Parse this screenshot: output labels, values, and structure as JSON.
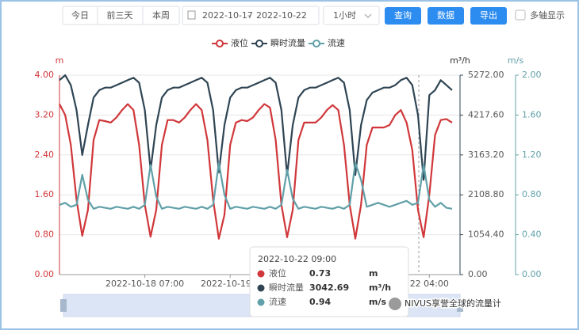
{
  "toolbar": {
    "buttons": [
      "今日",
      "前三天",
      "本周"
    ],
    "date_start": "2022-10-17",
    "date_sep": "-",
    "date_end": "2022-10-22",
    "interval": "1小时",
    "actions": [
      "查询",
      "数据",
      "导出"
    ],
    "checkbox": "多轴显示"
  },
  "chart_data": {
    "type": "line",
    "categories": [
      null,
      null,
      null,
      null,
      null,
      null,
      null,
      null,
      null,
      null,
      null,
      null,
      null,
      null,
      null,
      "2022-10-18 07:00",
      null,
      null,
      null,
      null,
      null,
      null,
      null,
      null,
      null,
      null,
      null,
      null,
      null,
      null,
      "2022-10-19 1",
      null,
      null,
      null,
      null,
      null,
      null,
      null,
      null,
      null,
      null,
      null,
      null,
      null,
      null,
      null,
      null,
      null,
      null,
      null,
      null,
      null,
      null,
      null,
      null,
      null,
      null,
      null,
      null,
      null,
      null,
      null,
      null,
      null,
      null,
      "22 04:00",
      null,
      null,
      null,
      null
    ],
    "y_label": "m",
    "y2_label": "m³/h",
    "y3_label": "m/s",
    "ylim": [
      0,
      4
    ],
    "yticks": [
      {
        "value": 0,
        "label": "0.00"
      },
      {
        "value": 0.8,
        "label": "0.80"
      },
      {
        "value": 1.6,
        "label": "1.60"
      },
      {
        "value": 2.4,
        "label": "2.40"
      },
      {
        "value": 3.2,
        "label": "3.20"
      },
      {
        "value": 4,
        "label": "4.00"
      }
    ],
    "y2lim": [
      0,
      5272
    ],
    "y2ticks": [
      {
        "value": 0,
        "label": "0.00"
      },
      {
        "value": 1054.4,
        "label": "1054.40"
      },
      {
        "value": 2108.8,
        "label": "2108.80"
      },
      {
        "value": 3163.2,
        "label": "3163.20"
      },
      {
        "value": 4217.6,
        "label": "4217.60"
      },
      {
        "value": 5272,
        "label": "5272.00"
      }
    ],
    "y3lim": [
      0,
      2
    ],
    "y3ticks": [
      {
        "value": 0,
        "label": "0.00"
      },
      {
        "value": 0.4,
        "label": "0.40"
      },
      {
        "value": 0.8,
        "label": "0.80"
      },
      {
        "value": 1.2,
        "label": "1.20"
      },
      {
        "value": 1.6,
        "label": "1.60"
      },
      {
        "value": 2,
        "label": "2.00"
      }
    ],
    "grid": true,
    "series": [
      {
        "name": "液位",
        "color": "#d0373a",
        "axis": "y",
        "values": [
          3.42,
          3.2,
          2.6,
          1.5,
          0.78,
          1.3,
          2.7,
          3.1,
          3.08,
          3.05,
          3.15,
          3.3,
          3.42,
          3.3,
          2.6,
          1.4,
          0.76,
          1.3,
          2.6,
          3.1,
          3.1,
          3.05,
          3.15,
          3.3,
          3.42,
          3.3,
          2.7,
          1.5,
          0.72,
          1.2,
          2.6,
          3.05,
          3.1,
          3.08,
          3.15,
          3.3,
          3.42,
          3.35,
          2.7,
          1.4,
          0.75,
          1.3,
          2.7,
          3.05,
          3.05,
          3.05,
          3.15,
          3.3,
          3.4,
          3.3,
          2.6,
          1.4,
          0.72,
          1.4,
          2.6,
          2.95,
          2.95,
          2.95,
          3.0,
          3.2,
          3.3,
          3.05,
          2.5,
          1.3,
          0.75,
          1.6,
          2.8,
          3.1,
          3.12,
          3.05
        ]
      },
      {
        "name": "瞬时流量",
        "color": "#2f4554",
        "axis": "y2",
        "values": [
          5140,
          5272,
          5008,
          4350,
          3163,
          3954,
          4679,
          4877,
          4943,
          4943,
          5008,
          5074,
          5140,
          5206,
          5074,
          4350,
          2768,
          3954,
          4679,
          4877,
          4943,
          4943,
          5008,
          5074,
          5140,
          5206,
          5074,
          4350,
          2700,
          3954,
          4679,
          4877,
          4943,
          4943,
          5008,
          5074,
          5140,
          5206,
          5074,
          4350,
          2636,
          3954,
          4679,
          4877,
          4943,
          4943,
          5008,
          5074,
          5140,
          5206,
          5074,
          4350,
          2636,
          3954,
          4613,
          4811,
          4877,
          4943,
          4943,
          5008,
          5140,
          5206,
          5008,
          4218,
          2504,
          4745,
          4877,
          5140,
          5008,
          4877
        ]
      },
      {
        "name": "流速",
        "color": "#61a0a8",
        "axis": "y3",
        "values": [
          0.7,
          0.72,
          0.68,
          0.7,
          1.0,
          0.75,
          0.66,
          0.68,
          0.67,
          0.66,
          0.68,
          0.67,
          0.66,
          0.68,
          0.66,
          0.7,
          1.1,
          0.78,
          0.66,
          0.68,
          0.67,
          0.66,
          0.68,
          0.67,
          0.66,
          0.68,
          0.66,
          0.7,
          1.12,
          0.8,
          0.66,
          0.68,
          0.67,
          0.66,
          0.68,
          0.67,
          0.66,
          0.68,
          0.66,
          0.7,
          1.05,
          0.76,
          0.66,
          0.68,
          0.67,
          0.66,
          0.68,
          0.67,
          0.66,
          0.68,
          0.66,
          0.7,
          1.12,
          0.95,
          0.68,
          0.7,
          0.72,
          0.7,
          0.68,
          0.7,
          0.72,
          0.74,
          0.7,
          0.72,
          1.1,
          0.75,
          0.68,
          0.72,
          0.67,
          0.66
        ]
      }
    ],
    "tooltip": {
      "title": "2022-10-22 09:00",
      "rows": [
        {
          "name": "液位",
          "value": "0.73",
          "unit": "m"
        },
        {
          "name": "瞬时流量",
          "value": "3042.69",
          "unit": "m³/h"
        },
        {
          "name": "流速",
          "value": "0.94",
          "unit": "m/s"
        }
      ]
    }
  },
  "watermark": "NIVUS享誉全球的流量计"
}
